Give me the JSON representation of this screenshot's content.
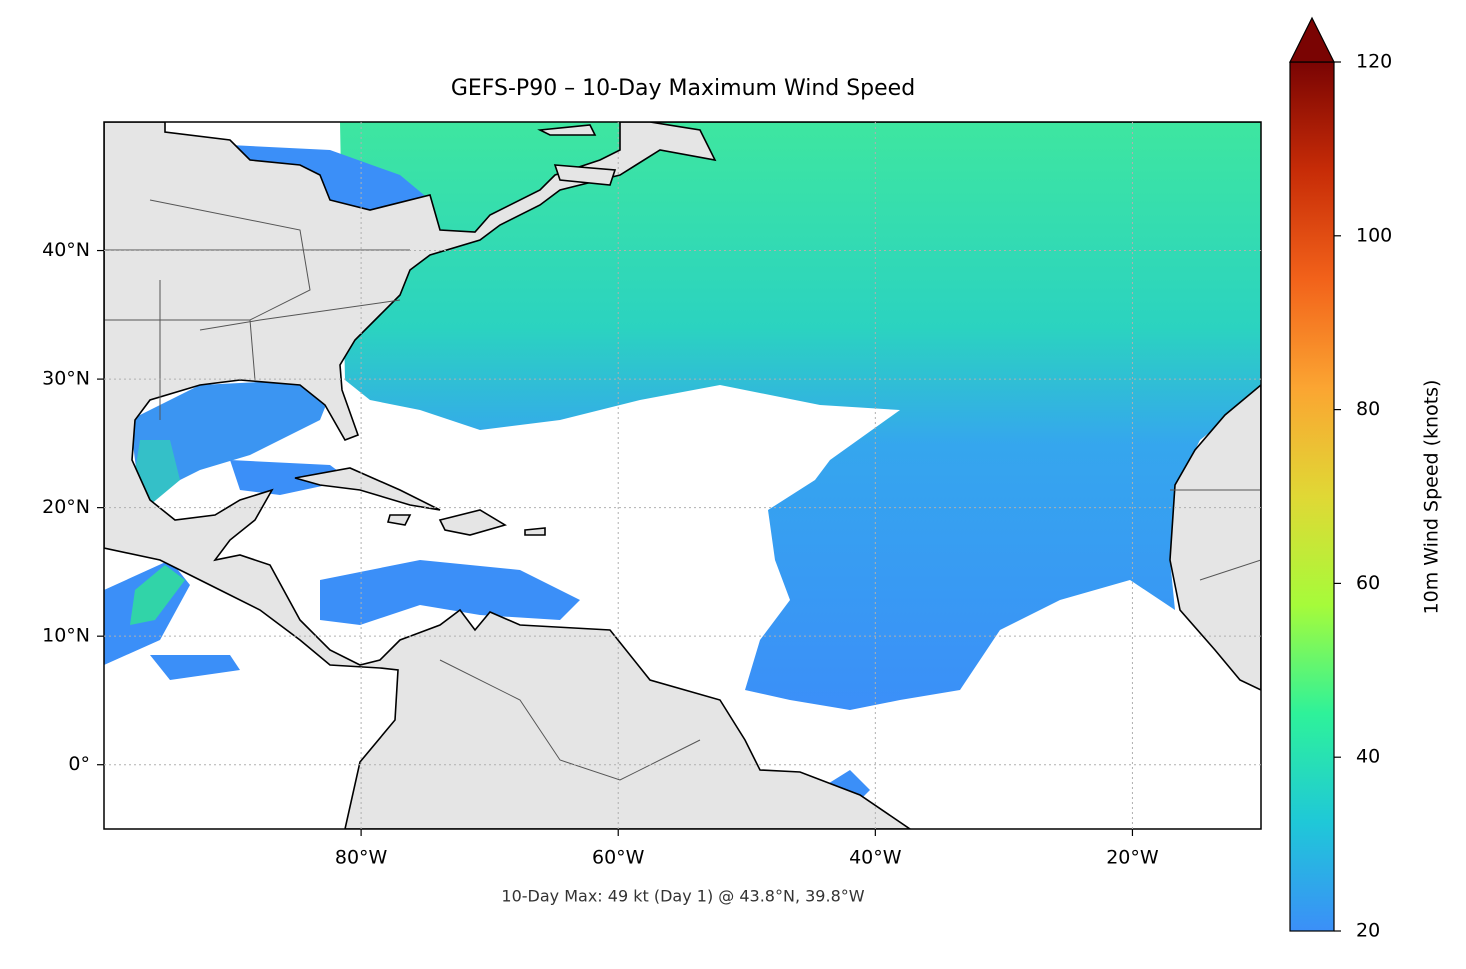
{
  "map": {
    "title": "GEFS-P90 – 10-Day Maximum Wind Speed",
    "annotation": "10-Day Max: 49 kt (Day 1) @ 43.8°N, 39.8°W",
    "xlim": [
      -100,
      -10
    ],
    "ylim": [
      -5,
      50
    ],
    "xticks": [
      {
        "value": -80,
        "label": "80°W"
      },
      {
        "value": -60,
        "label": "60°W"
      },
      {
        "value": -40,
        "label": "40°W"
      },
      {
        "value": -20,
        "label": "20°W"
      }
    ],
    "yticks": [
      {
        "value": 0,
        "label": "0°"
      },
      {
        "value": 10,
        "label": "10°N"
      },
      {
        "value": 20,
        "label": "20°N"
      },
      {
        "value": 30,
        "label": "30°N"
      },
      {
        "value": 40,
        "label": "40°N"
      }
    ],
    "grid": true
  },
  "colorbar": {
    "label": "10m Wind Speed (knots)",
    "lim": [
      20,
      120
    ],
    "ticks": [
      20,
      40,
      60,
      80,
      100,
      120
    ],
    "colormap": [
      "#3b8ff8",
      "#1fc8d8",
      "#2ef29a",
      "#a6fb3a",
      "#e0d835",
      "#fba532",
      "#f2621a",
      "#c72c07",
      "#7a0403"
    ]
  }
}
